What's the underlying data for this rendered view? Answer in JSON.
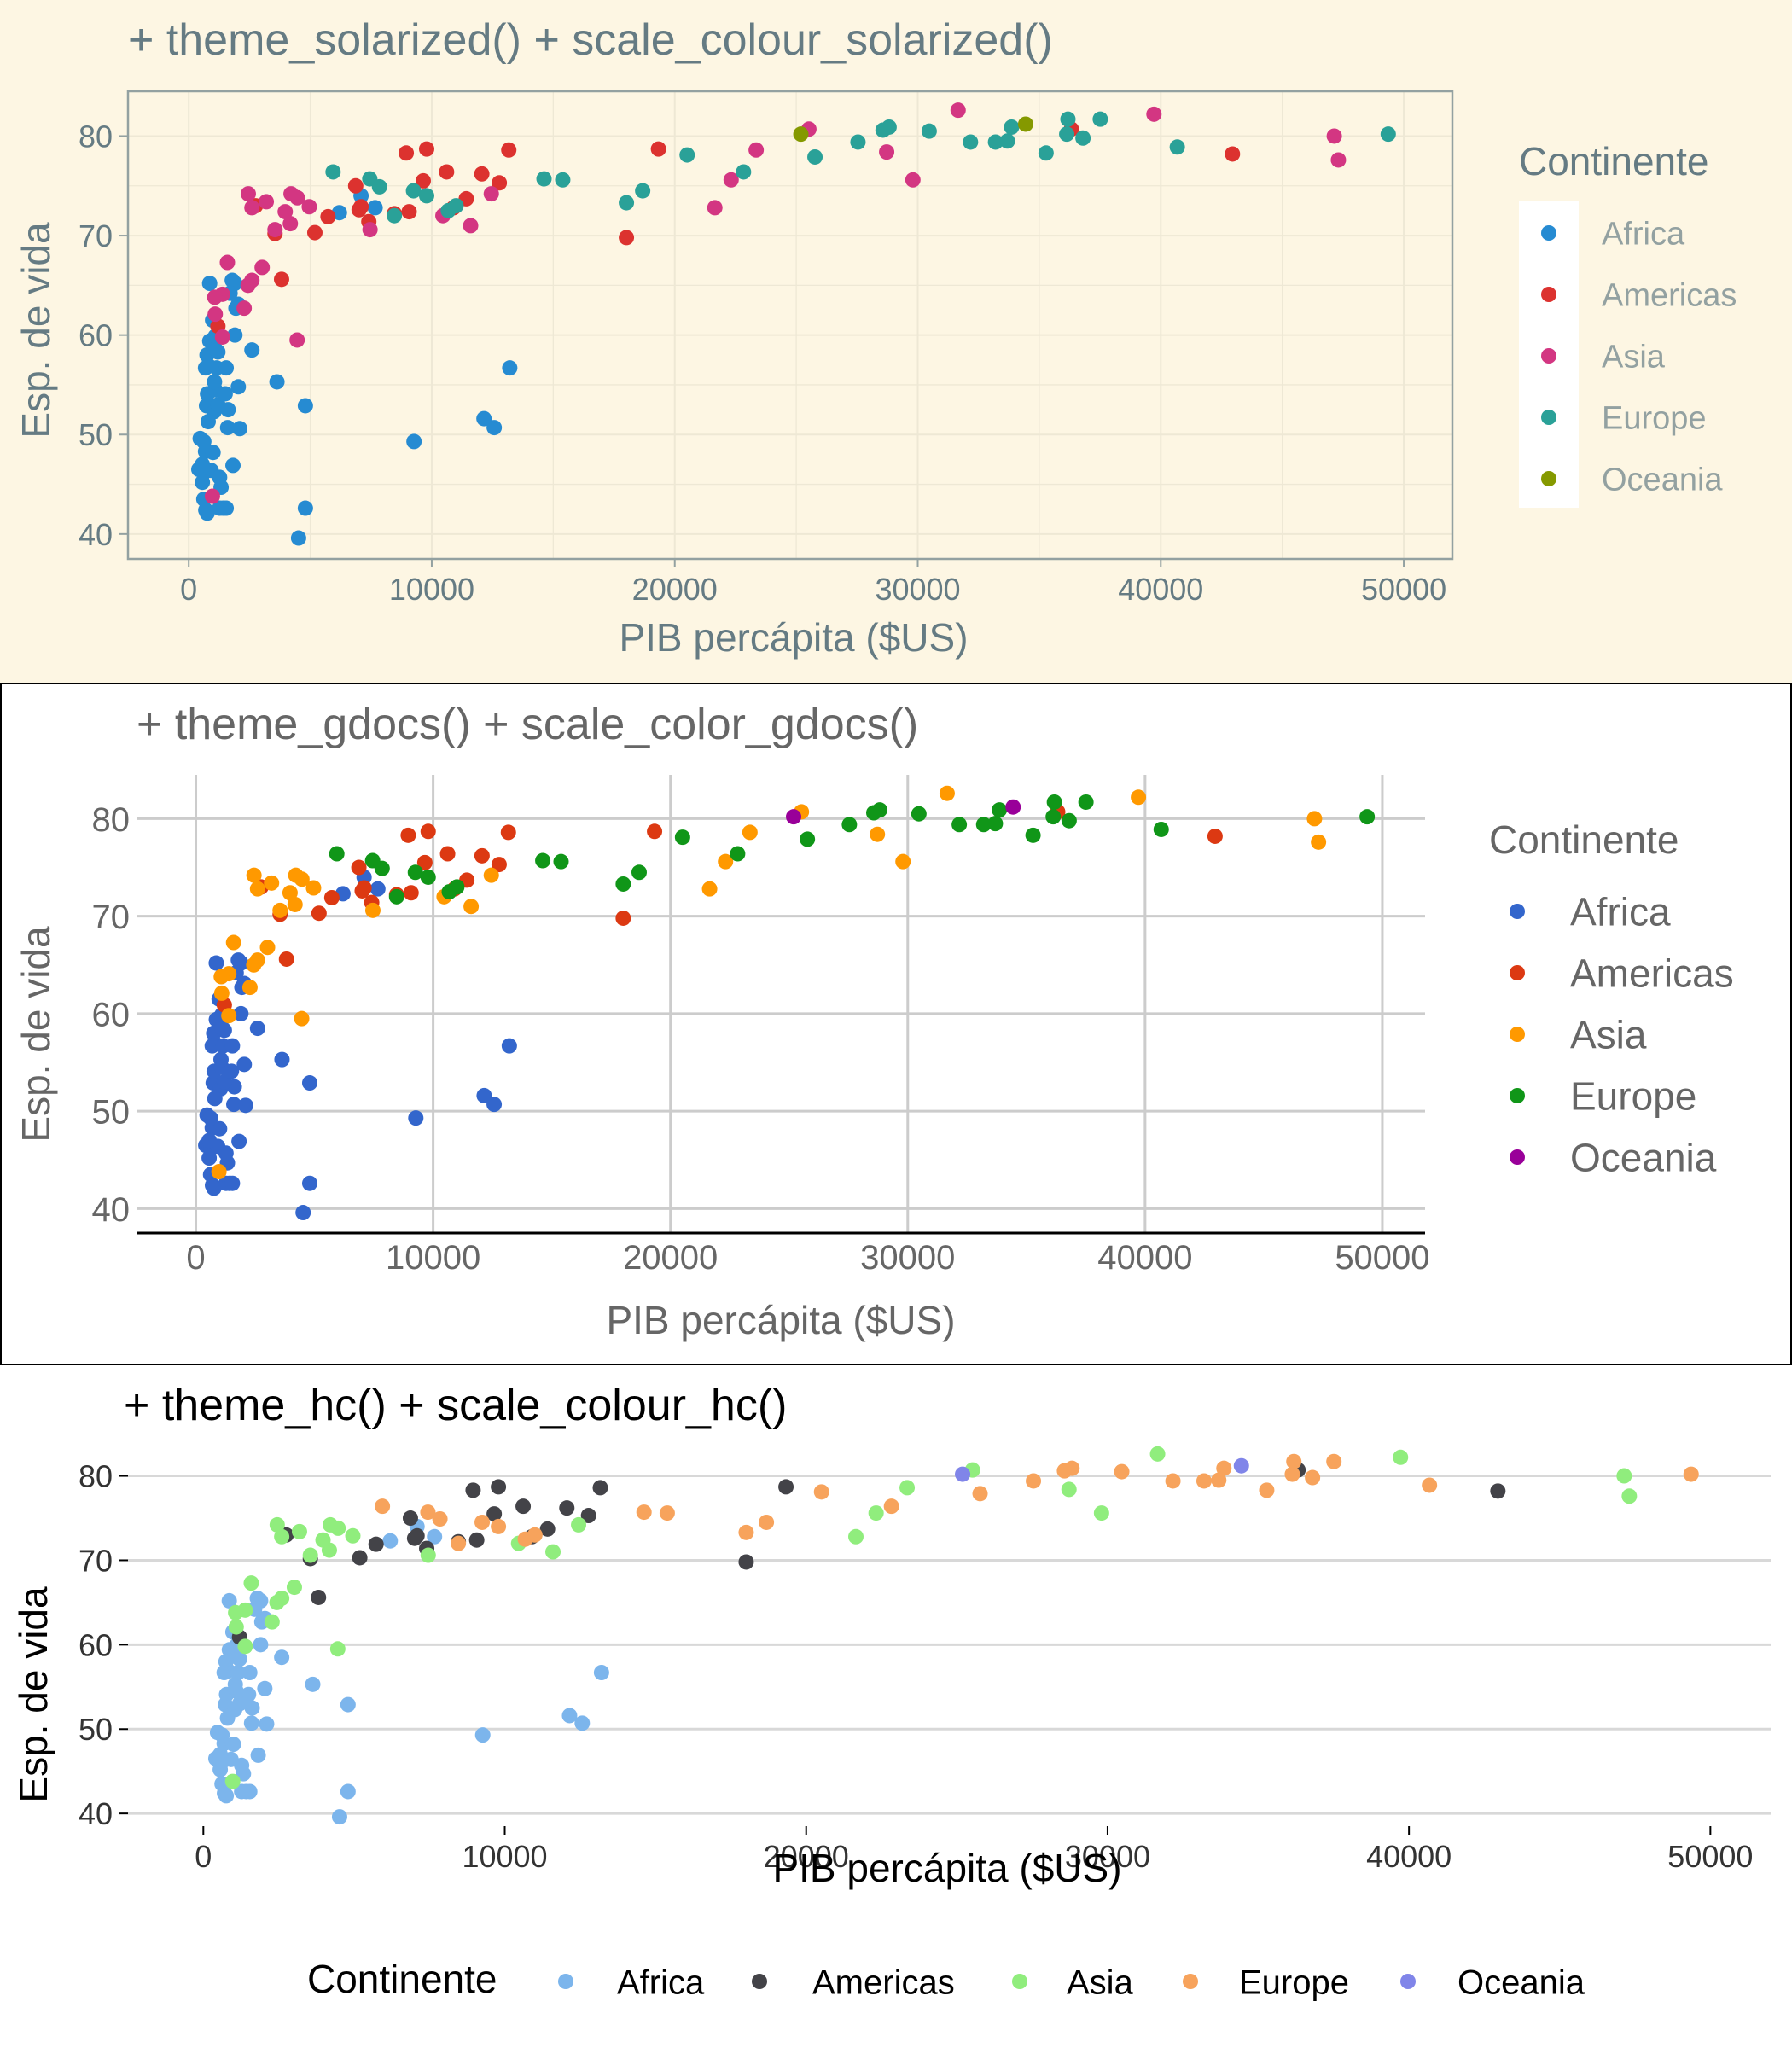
{
  "chart_data": [
    {
      "type": "scatter",
      "title": "+ theme_solarized() + scale_colour_solarized()",
      "xlabel": "PIB percápita ($US)",
      "ylabel": "Esp. de vida",
      "xlim": [
        -2500,
        52000
      ],
      "ylim": [
        37.5,
        84.5
      ],
      "xticks": [
        0,
        10000,
        20000,
        30000,
        40000,
        50000
      ],
      "yticks": [
        40,
        50,
        60,
        70,
        80
      ],
      "legend_title": "Continente",
      "legend_position": "right",
      "theme": "solarized",
      "colors": {
        "Africa": "#268bd2",
        "Americas": "#dc322f",
        "Asia": "#d33682",
        "Europe": "#2aa198",
        "Oceania": "#859900"
      },
      "legend": [
        "Africa",
        "Americas",
        "Asia",
        "Europe",
        "Oceania"
      ]
    },
    {
      "type": "scatter",
      "title": "+ theme_gdocs() + scale_color_gdocs()",
      "xlabel": "PIB percápita ($US)",
      "ylabel": "Esp. de vida",
      "xlim": [
        -2500,
        51800
      ],
      "ylim": [
        37.5,
        84.5
      ],
      "xticks": [
        0,
        10000,
        20000,
        30000,
        40000,
        50000
      ],
      "yticks": [
        40,
        50,
        60,
        70,
        80
      ],
      "legend_title": "Continente",
      "legend_position": "right",
      "theme": "gdocs",
      "colors": {
        "Africa": "#3366cc",
        "Americas": "#dc3912",
        "Asia": "#ff9900",
        "Europe": "#109618",
        "Oceania": "#990099"
      },
      "legend": [
        "Africa",
        "Americas",
        "Asia",
        "Europe",
        "Oceania"
      ]
    },
    {
      "type": "scatter",
      "title": "+ theme_hc() + scale_colour_hc()",
      "xlabel": "PIB percápita ($US)",
      "ylabel": "Esp. de vida",
      "xlim": [
        -2500,
        52000
      ],
      "ylim": [
        38.5,
        84
      ],
      "xticks": [
        0,
        10000,
        20000,
        30000,
        40000,
        50000
      ],
      "yticks": [
        40,
        50,
        60,
        70,
        80
      ],
      "legend_title": "Continente",
      "legend_position": "bottom",
      "theme": "hc",
      "colors": {
        "Africa": "#7cb5ec",
        "Americas": "#434348",
        "Asia": "#90ed7d",
        "Europe": "#f7a35c",
        "Oceania": "#8085e9"
      },
      "legend": [
        "Africa",
        "Americas",
        "Asia",
        "Europe",
        "Oceania"
      ]
    }
  ],
  "points": [
    [
      "Africa",
      415,
      46.5
    ],
    [
      "Africa",
      560,
      45.2
    ],
    [
      "Africa",
      620,
      43.5
    ],
    [
      "Africa",
      700,
      42.4
    ],
    [
      "Africa",
      759,
      42.1
    ],
    [
      "Africa",
      470,
      49.6
    ],
    [
      "Africa",
      580,
      46.4
    ],
    [
      "Africa",
      641,
      46.2
    ],
    [
      "Africa",
      690,
      48.3
    ],
    [
      "Africa",
      730,
      52.9
    ],
    [
      "Africa",
      770,
      54.1
    ],
    [
      "Africa",
      824,
      56.9
    ],
    [
      "Africa",
      863,
      59.4
    ],
    [
      "Africa",
      750,
      58.0
    ],
    [
      "Africa",
      690,
      56.7
    ],
    [
      "Africa",
      920,
      46.4
    ],
    [
      "Africa",
      1000,
      48.2
    ],
    [
      "Africa",
      1040,
      52.3
    ],
    [
      "Africa",
      1090,
      54.5
    ],
    [
      "Africa",
      1150,
      56.7
    ],
    [
      "Africa",
      1200,
      58.3
    ],
    [
      "Africa",
      1270,
      45.7
    ],
    [
      "Africa",
      1330,
      44.7
    ],
    [
      "Africa",
      1270,
      42.6
    ],
    [
      "Africa",
      1420,
      42.6
    ],
    [
      "Africa",
      1540,
      42.6
    ],
    [
      "Africa",
      1600,
      50.7
    ],
    [
      "Africa",
      1620,
      52.5
    ],
    [
      "Africa",
      1200,
      53.0
    ],
    [
      "Africa",
      1060,
      55.3
    ],
    [
      "Africa",
      1500,
      54.1
    ],
    [
      "Africa",
      1790,
      65.5
    ],
    [
      "Africa",
      1900,
      65.2
    ],
    [
      "Africa",
      1700,
      64.2
    ],
    [
      "Africa",
      2040,
      63.1
    ],
    [
      "Africa",
      2100,
      50.6
    ],
    [
      "Africa",
      2040,
      54.8
    ],
    [
      "Africa",
      1820,
      46.9
    ],
    [
      "Africa",
      1540,
      56.7
    ],
    [
      "Africa",
      1900,
      60.0
    ],
    [
      "Africa",
      860,
      65.2
    ],
    [
      "Africa",
      1940,
      62.7
    ],
    [
      "Africa",
      2600,
      58.5
    ],
    [
      "Africa",
      3630,
      55.3
    ],
    [
      "Africa",
      4800,
      52.9
    ],
    [
      "Africa",
      4520,
      39.6
    ],
    [
      "Africa",
      4800,
      42.6
    ],
    [
      "Africa",
      7670,
      72.8
    ],
    [
      "Africa",
      7090,
      74.0
    ],
    [
      "Africa",
      6200,
      72.3
    ],
    [
      "Africa",
      9270,
      49.3
    ],
    [
      "Africa",
      12150,
      51.6
    ],
    [
      "Africa",
      12570,
      50.7
    ],
    [
      "Africa",
      13210,
      56.7
    ],
    [
      "Africa",
      1090,
      58.6
    ],
    [
      "Africa",
      980,
      61.5
    ],
    [
      "Africa",
      1100,
      59.9
    ],
    [
      "Africa",
      620,
      49.3
    ],
    [
      "Africa",
      560,
      47.0
    ],
    [
      "Africa",
      800,
      51.3
    ],
    [
      "Americas",
      1200,
      60.9
    ],
    [
      "Americas",
      3820,
      65.6
    ],
    [
      "Americas",
      5190,
      70.3
    ],
    [
      "Americas",
      2750,
      73.0
    ],
    [
      "Americas",
      7090,
      72.9
    ],
    [
      "Americas",
      9070,
      72.4
    ],
    [
      "Americas",
      9650,
      75.5
    ],
    [
      "Americas",
      7010,
      72.6
    ],
    [
      "Americas",
      6870,
      75.0
    ],
    [
      "Americas",
      7410,
      71.4
    ],
    [
      "Americas",
      5730,
      71.9
    ],
    [
      "Americas",
      8950,
      78.3
    ],
    [
      "Americas",
      9790,
      78.7
    ],
    [
      "Americas",
      10610,
      76.4
    ],
    [
      "Americas",
      11420,
      73.7
    ],
    [
      "Americas",
      12060,
      76.2
    ],
    [
      "Americas",
      12780,
      75.3
    ],
    [
      "Americas",
      13170,
      78.6
    ],
    [
      "Americas",
      18010,
      69.8
    ],
    [
      "Americas",
      19330,
      78.7
    ],
    [
      "Americas",
      36320,
      80.7
    ],
    [
      "Americas",
      42950,
      78.2
    ],
    [
      "Americas",
      3550,
      70.2
    ],
    [
      "Americas",
      8460,
      72.2
    ],
    [
      "Americas",
      10900,
      72.8
    ],
    [
      "Asia",
      974,
      43.8
    ],
    [
      "Asia",
      1390,
      64.1
    ],
    [
      "Asia",
      1090,
      62.1
    ],
    [
      "Asia",
      2450,
      74.2
    ],
    [
      "Asia",
      3190,
      73.4
    ],
    [
      "Asia",
      2600,
      72.8
    ],
    [
      "Asia",
      3020,
      66.8
    ],
    [
      "Asia",
      4180,
      71.2
    ],
    [
      "Asia",
      4460,
      59.5
    ],
    [
      "Asia",
      4960,
      72.9
    ],
    [
      "Asia",
      2280,
      62.7
    ],
    [
      "Asia",
      1590,
      67.3
    ],
    [
      "Asia",
      1390,
      59.8
    ],
    [
      "Asia",
      1070,
      63.8
    ],
    [
      "Asia",
      2600,
      65.5
    ],
    [
      "Asia",
      4470,
      73.8
    ],
    [
      "Asia",
      4210,
      74.2
    ],
    [
      "Asia",
      3550,
      70.6
    ],
    [
      "Asia",
      3970,
      72.4
    ],
    [
      "Asia",
      11600,
      71.0
    ],
    [
      "Asia",
      10460,
      72.0
    ],
    [
      "Asia",
      12450,
      74.2
    ],
    [
      "Asia",
      21650,
      72.8
    ],
    [
      "Asia",
      22320,
      75.6
    ],
    [
      "Asia",
      23350,
      78.6
    ],
    [
      "Asia",
      25520,
      80.7
    ],
    [
      "Asia",
      28720,
      78.4
    ],
    [
      "Asia",
      29800,
      75.6
    ],
    [
      "Asia",
      31660,
      82.6
    ],
    [
      "Asia",
      39720,
      82.2
    ],
    [
      "Asia",
      47140,
      80.0
    ],
    [
      "Asia",
      47310,
      77.6
    ],
    [
      "Asia",
      7460,
      70.6
    ],
    [
      "Asia",
      2440,
      65.0
    ],
    [
      "Europe",
      5940,
      76.4
    ],
    [
      "Europe",
      7450,
      75.7
    ],
    [
      "Europe",
      8460,
      72.0
    ],
    [
      "Europe",
      10680,
      72.5
    ],
    [
      "Europe",
      11000,
      73.0
    ],
    [
      "Europe",
      9790,
      74.0
    ],
    [
      "Europe",
      14620,
      75.7
    ],
    [
      "Europe",
      15390,
      75.6
    ],
    [
      "Europe",
      18010,
      73.3
    ],
    [
      "Europe",
      18680,
      74.5
    ],
    [
      "Europe",
      20510,
      78.1
    ],
    [
      "Europe",
      22830,
      76.4
    ],
    [
      "Europe",
      25770,
      77.9
    ],
    [
      "Europe",
      27540,
      79.4
    ],
    [
      "Europe",
      28570,
      80.6
    ],
    [
      "Europe",
      28820,
      80.9
    ],
    [
      "Europe",
      30470,
      80.5
    ],
    [
      "Europe",
      32170,
      79.4
    ],
    [
      "Europe",
      33200,
      79.4
    ],
    [
      "Europe",
      33690,
      79.5
    ],
    [
      "Europe",
      33860,
      80.9
    ],
    [
      "Europe",
      35280,
      78.3
    ],
    [
      "Europe",
      36130,
      80.2
    ],
    [
      "Europe",
      36180,
      81.7
    ],
    [
      "Europe",
      36800,
      79.8
    ],
    [
      "Europe",
      37510,
      81.7
    ],
    [
      "Europe",
      40680,
      78.9
    ],
    [
      "Europe",
      49360,
      80.2
    ],
    [
      "Europe",
      9250,
      74.5
    ],
    [
      "Europe",
      7850,
      74.9
    ],
    [
      "Oceania",
      25190,
      80.2
    ],
    [
      "Oceania",
      34440,
      81.2
    ]
  ]
}
